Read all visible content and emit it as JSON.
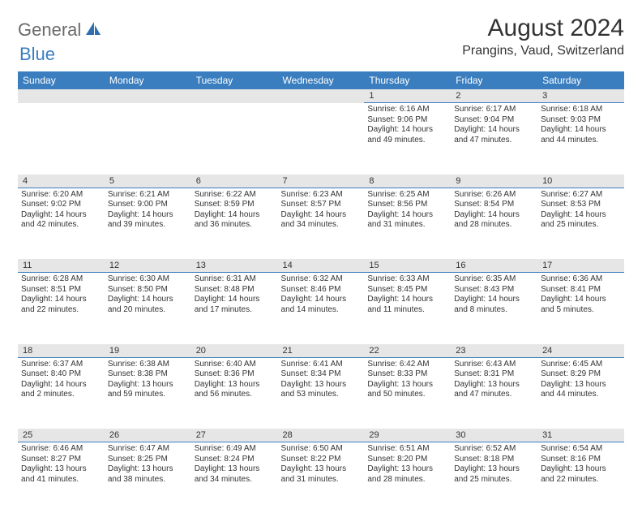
{
  "brand": {
    "text1": "General",
    "text2": "Blue"
  },
  "title": "August 2024",
  "location": "Prangins, Vaud, Switzerland",
  "colors": {
    "header_bg": "#3a7ebf",
    "header_fg": "#ffffff",
    "daynum_bg": "#e6e6e6",
    "border": "#3a7ebf",
    "text": "#333333",
    "logo_gray": "#6b6b6b",
    "logo_blue": "#3a7ebf"
  },
  "dow": [
    "Sunday",
    "Monday",
    "Tuesday",
    "Wednesday",
    "Thursday",
    "Friday",
    "Saturday"
  ],
  "weeks": [
    [
      null,
      null,
      null,
      null,
      {
        "n": "1",
        "sr": "Sunrise: 6:16 AM",
        "ss": "Sunset: 9:06 PM",
        "d1": "Daylight: 14 hours",
        "d2": "and 49 minutes."
      },
      {
        "n": "2",
        "sr": "Sunrise: 6:17 AM",
        "ss": "Sunset: 9:04 PM",
        "d1": "Daylight: 14 hours",
        "d2": "and 47 minutes."
      },
      {
        "n": "3",
        "sr": "Sunrise: 6:18 AM",
        "ss": "Sunset: 9:03 PM",
        "d1": "Daylight: 14 hours",
        "d2": "and 44 minutes."
      }
    ],
    [
      {
        "n": "4",
        "sr": "Sunrise: 6:20 AM",
        "ss": "Sunset: 9:02 PM",
        "d1": "Daylight: 14 hours",
        "d2": "and 42 minutes."
      },
      {
        "n": "5",
        "sr": "Sunrise: 6:21 AM",
        "ss": "Sunset: 9:00 PM",
        "d1": "Daylight: 14 hours",
        "d2": "and 39 minutes."
      },
      {
        "n": "6",
        "sr": "Sunrise: 6:22 AM",
        "ss": "Sunset: 8:59 PM",
        "d1": "Daylight: 14 hours",
        "d2": "and 36 minutes."
      },
      {
        "n": "7",
        "sr": "Sunrise: 6:23 AM",
        "ss": "Sunset: 8:57 PM",
        "d1": "Daylight: 14 hours",
        "d2": "and 34 minutes."
      },
      {
        "n": "8",
        "sr": "Sunrise: 6:25 AM",
        "ss": "Sunset: 8:56 PM",
        "d1": "Daylight: 14 hours",
        "d2": "and 31 minutes."
      },
      {
        "n": "9",
        "sr": "Sunrise: 6:26 AM",
        "ss": "Sunset: 8:54 PM",
        "d1": "Daylight: 14 hours",
        "d2": "and 28 minutes."
      },
      {
        "n": "10",
        "sr": "Sunrise: 6:27 AM",
        "ss": "Sunset: 8:53 PM",
        "d1": "Daylight: 14 hours",
        "d2": "and 25 minutes."
      }
    ],
    [
      {
        "n": "11",
        "sr": "Sunrise: 6:28 AM",
        "ss": "Sunset: 8:51 PM",
        "d1": "Daylight: 14 hours",
        "d2": "and 22 minutes."
      },
      {
        "n": "12",
        "sr": "Sunrise: 6:30 AM",
        "ss": "Sunset: 8:50 PM",
        "d1": "Daylight: 14 hours",
        "d2": "and 20 minutes."
      },
      {
        "n": "13",
        "sr": "Sunrise: 6:31 AM",
        "ss": "Sunset: 8:48 PM",
        "d1": "Daylight: 14 hours",
        "d2": "and 17 minutes."
      },
      {
        "n": "14",
        "sr": "Sunrise: 6:32 AM",
        "ss": "Sunset: 8:46 PM",
        "d1": "Daylight: 14 hours",
        "d2": "and 14 minutes."
      },
      {
        "n": "15",
        "sr": "Sunrise: 6:33 AM",
        "ss": "Sunset: 8:45 PM",
        "d1": "Daylight: 14 hours",
        "d2": "and 11 minutes."
      },
      {
        "n": "16",
        "sr": "Sunrise: 6:35 AM",
        "ss": "Sunset: 8:43 PM",
        "d1": "Daylight: 14 hours",
        "d2": "and 8 minutes."
      },
      {
        "n": "17",
        "sr": "Sunrise: 6:36 AM",
        "ss": "Sunset: 8:41 PM",
        "d1": "Daylight: 14 hours",
        "d2": "and 5 minutes."
      }
    ],
    [
      {
        "n": "18",
        "sr": "Sunrise: 6:37 AM",
        "ss": "Sunset: 8:40 PM",
        "d1": "Daylight: 14 hours",
        "d2": "and 2 minutes."
      },
      {
        "n": "19",
        "sr": "Sunrise: 6:38 AM",
        "ss": "Sunset: 8:38 PM",
        "d1": "Daylight: 13 hours",
        "d2": "and 59 minutes."
      },
      {
        "n": "20",
        "sr": "Sunrise: 6:40 AM",
        "ss": "Sunset: 8:36 PM",
        "d1": "Daylight: 13 hours",
        "d2": "and 56 minutes."
      },
      {
        "n": "21",
        "sr": "Sunrise: 6:41 AM",
        "ss": "Sunset: 8:34 PM",
        "d1": "Daylight: 13 hours",
        "d2": "and 53 minutes."
      },
      {
        "n": "22",
        "sr": "Sunrise: 6:42 AM",
        "ss": "Sunset: 8:33 PM",
        "d1": "Daylight: 13 hours",
        "d2": "and 50 minutes."
      },
      {
        "n": "23",
        "sr": "Sunrise: 6:43 AM",
        "ss": "Sunset: 8:31 PM",
        "d1": "Daylight: 13 hours",
        "d2": "and 47 minutes."
      },
      {
        "n": "24",
        "sr": "Sunrise: 6:45 AM",
        "ss": "Sunset: 8:29 PM",
        "d1": "Daylight: 13 hours",
        "d2": "and 44 minutes."
      }
    ],
    [
      {
        "n": "25",
        "sr": "Sunrise: 6:46 AM",
        "ss": "Sunset: 8:27 PM",
        "d1": "Daylight: 13 hours",
        "d2": "and 41 minutes."
      },
      {
        "n": "26",
        "sr": "Sunrise: 6:47 AM",
        "ss": "Sunset: 8:25 PM",
        "d1": "Daylight: 13 hours",
        "d2": "and 38 minutes."
      },
      {
        "n": "27",
        "sr": "Sunrise: 6:49 AM",
        "ss": "Sunset: 8:24 PM",
        "d1": "Daylight: 13 hours",
        "d2": "and 34 minutes."
      },
      {
        "n": "28",
        "sr": "Sunrise: 6:50 AM",
        "ss": "Sunset: 8:22 PM",
        "d1": "Daylight: 13 hours",
        "d2": "and 31 minutes."
      },
      {
        "n": "29",
        "sr": "Sunrise: 6:51 AM",
        "ss": "Sunset: 8:20 PM",
        "d1": "Daylight: 13 hours",
        "d2": "and 28 minutes."
      },
      {
        "n": "30",
        "sr": "Sunrise: 6:52 AM",
        "ss": "Sunset: 8:18 PM",
        "d1": "Daylight: 13 hours",
        "d2": "and 25 minutes."
      },
      {
        "n": "31",
        "sr": "Sunrise: 6:54 AM",
        "ss": "Sunset: 8:16 PM",
        "d1": "Daylight: 13 hours",
        "d2": "and 22 minutes."
      }
    ]
  ]
}
